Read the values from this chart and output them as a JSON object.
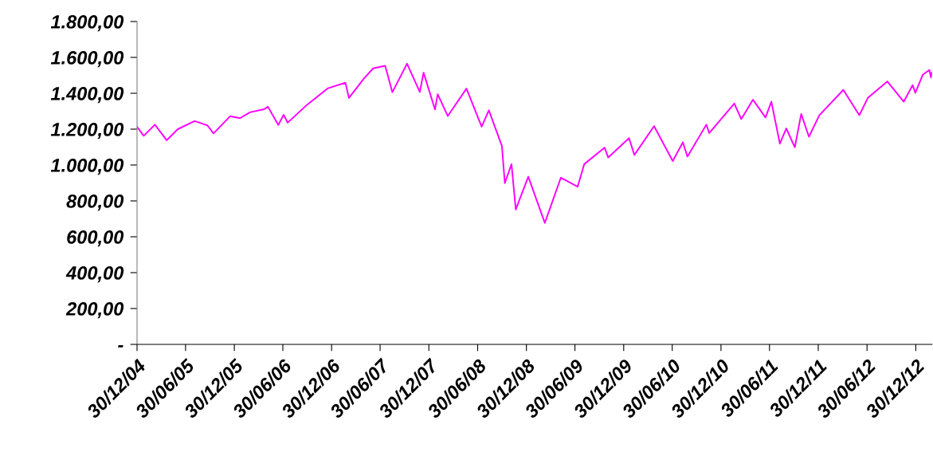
{
  "chart_data": {
    "type": "line",
    "x": [
      "2004-12-30",
      "2005-01-24",
      "2005-03-07",
      "2005-04-20",
      "2005-06-01",
      "2005-08-03",
      "2005-09-20",
      "2005-10-13",
      "2005-12-14",
      "2006-01-20",
      "2006-02-27",
      "2006-04-21",
      "2006-05-05",
      "2006-06-13",
      "2006-07-03",
      "2006-07-18",
      "2006-09-29",
      "2006-12-15",
      "2007-02-20",
      "2007-03-05",
      "2007-04-30",
      "2007-06-04",
      "2007-07-19",
      "2007-08-15",
      "2007-10-09",
      "2007-11-26",
      "2007-12-10",
      "2008-01-22",
      "2008-02-01",
      "2008-03-10",
      "2008-05-19",
      "2008-07-15",
      "2008-08-11",
      "2008-09-29",
      "2008-10-10",
      "2008-11-04",
      "2008-11-20",
      "2009-01-06",
      "2009-03-09",
      "2009-05-08",
      "2009-07-10",
      "2009-08-04",
      "2009-10-19",
      "2009-11-02",
      "2010-01-19",
      "2010-02-08",
      "2010-04-23",
      "2010-07-02",
      "2010-08-09",
      "2010-08-26",
      "2010-11-05",
      "2010-11-16",
      "2011-02-18",
      "2011-03-16",
      "2011-04-29",
      "2011-06-15",
      "2011-07-07",
      "2011-08-08",
      "2011-09-01",
      "2011-10-03",
      "2011-10-27",
      "2011-11-25",
      "2012-01-03",
      "2012-04-02",
      "2012-06-01",
      "2012-07-03",
      "2012-09-14",
      "2012-11-15",
      "2012-12-18",
      "2012-12-28",
      "2013-01-25",
      "2013-02-19",
      "2013-02-25",
      "2013-02-28"
    ],
    "series": [
      {
        "color": "#ff00ff",
        "values": [
          1213,
          1163,
          1225,
          1138,
          1200,
          1245,
          1221,
          1176,
          1272,
          1261,
          1294,
          1311,
          1325,
          1223,
          1280,
          1236,
          1336,
          1427,
          1459,
          1374,
          1482,
          1539,
          1553,
          1406,
          1565,
          1407,
          1515,
          1310,
          1395,
          1273,
          1426,
          1214,
          1305,
          1106,
          899,
          1005,
          752,
          935,
          677,
          929,
          879,
          1005,
          1097,
          1042,
          1150,
          1056,
          1217,
          1022,
          1127,
          1047,
          1225,
          1178,
          1343,
          1256,
          1364,
          1265,
          1353,
          1119,
          1204,
          1099,
          1285,
          1158,
          1277,
          1419,
          1278,
          1374,
          1466,
          1353,
          1446,
          1402,
          1503,
          1530,
          1488,
          1515
        ]
      }
    ],
    "xlim": [
      "2004-12-30",
      "2013-03-01"
    ],
    "xticks": [
      {
        "value": "2004-12-30",
        "label": "30/12/04"
      },
      {
        "value": "2005-06-30",
        "label": "30/06/05"
      },
      {
        "value": "2005-12-30",
        "label": "30/12/05"
      },
      {
        "value": "2006-06-30",
        "label": "30/06/06"
      },
      {
        "value": "2006-12-30",
        "label": "30/12/06"
      },
      {
        "value": "2007-06-30",
        "label": "30/06/07"
      },
      {
        "value": "2007-12-30",
        "label": "30/12/07"
      },
      {
        "value": "2008-06-30",
        "label": "30/06/08"
      },
      {
        "value": "2008-12-30",
        "label": "30/12/08"
      },
      {
        "value": "2009-06-30",
        "label": "30/06/09"
      },
      {
        "value": "2009-12-30",
        "label": "30/12/09"
      },
      {
        "value": "2010-06-30",
        "label": "30/06/10"
      },
      {
        "value": "2010-12-30",
        "label": "30/12/10"
      },
      {
        "value": "2011-06-30",
        "label": "30/06/11"
      },
      {
        "value": "2011-12-30",
        "label": "30/12/11"
      },
      {
        "value": "2012-06-30",
        "label": "30/06/12"
      },
      {
        "value": "2012-12-30",
        "label": "30/12/12"
      }
    ],
    "ylim": [
      0,
      1800
    ],
    "yticks": [
      {
        "value": 0,
        "label": "-"
      },
      {
        "value": 200,
        "label": "200,00"
      },
      {
        "value": 400,
        "label": "400,00"
      },
      {
        "value": 600,
        "label": "600,00"
      },
      {
        "value": 800,
        "label": "800,00"
      },
      {
        "value": 1000,
        "label": "1.000,00"
      },
      {
        "value": 1200,
        "label": "1.200,00"
      },
      {
        "value": 1400,
        "label": "1.400,00"
      },
      {
        "value": 1600,
        "label": "1.600,00"
      },
      {
        "value": 1800,
        "label": "1.800,00"
      }
    ],
    "grid": false,
    "legend": false,
    "marker": "none",
    "line_style": "solid"
  }
}
